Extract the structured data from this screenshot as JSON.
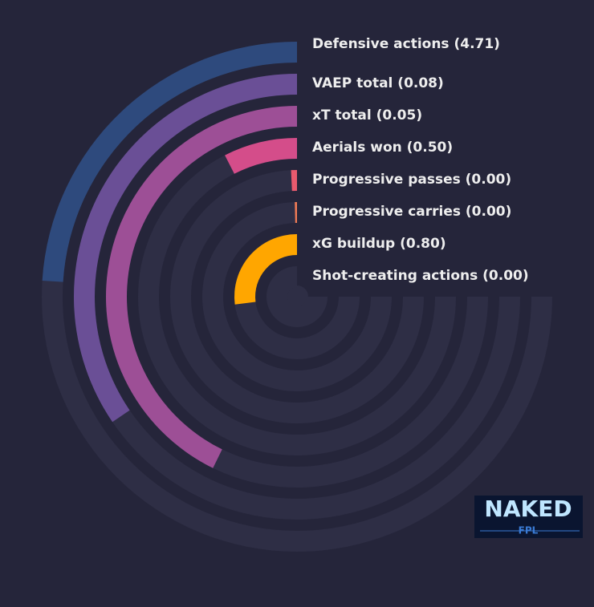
{
  "chart_data": {
    "type": "radial-bar",
    "categories": [
      "Defensive actions (4.71)",
      "VAEP total (0.08)",
      "xT total (0.05)",
      "Aerials won (0.50)",
      "Progressive passes (0.00)",
      "Progressive carries (0.00)",
      "xG buildup (0.80)",
      "Shot-creating actions (0.00)"
    ],
    "values": [
      32,
      46,
      57,
      10,
      1,
      0.5,
      36,
      0
    ],
    "colors": [
      "#2e4a7d",
      "#6a4f96",
      "#9d4f96",
      "#d44d8a",
      "#e85a6e",
      "#ef7a55",
      "#ffa600",
      "#ffa600"
    ],
    "ylim": [
      0,
      100
    ]
  },
  "logo": {
    "title": "NAKED",
    "subtitle": "FPL"
  }
}
